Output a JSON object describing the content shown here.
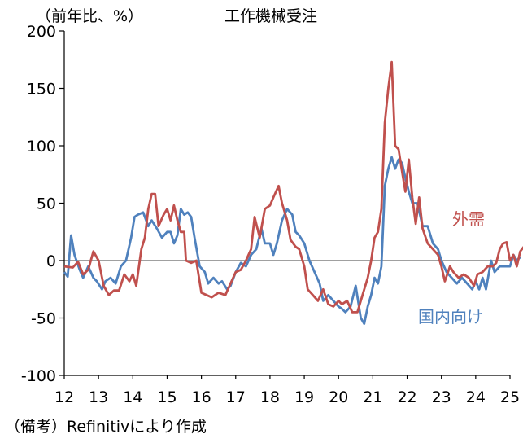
{
  "chart_data": {
    "type": "line",
    "title": "工作機械受注",
    "unit_label": "（前年比、%）",
    "caption": "（備考）Refinitivにより作成",
    "x_ticks": [
      "12",
      "13",
      "14",
      "15",
      "16",
      "17",
      "18",
      "19",
      "20",
      "21",
      "22",
      "23",
      "24",
      "25"
    ],
    "xlim": [
      2012,
      2025
    ],
    "ylim": [
      -100,
      200
    ],
    "y_ticks": [
      "200",
      "150",
      "100",
      "50",
      "0",
      "-50",
      "-100"
    ],
    "y_tick_values": [
      200,
      150,
      100,
      50,
      0,
      -50,
      -100
    ],
    "colors": {
      "external": "#c0504d",
      "domestic": "#4f81bd",
      "zero_line": "#808080",
      "axis": "#000000"
    },
    "series": [
      {
        "key": "external",
        "name": "外需",
        "points": [
          [
            2012.0,
            -5
          ],
          [
            2012.25,
            -6
          ],
          [
            2012.4,
            -1
          ],
          [
            2012.55,
            -12
          ],
          [
            2012.7,
            -8
          ],
          [
            2012.85,
            8
          ],
          [
            2013.0,
            0
          ],
          [
            2013.15,
            -22
          ],
          [
            2013.3,
            -30
          ],
          [
            2013.45,
            -26
          ],
          [
            2013.6,
            -26
          ],
          [
            2013.75,
            -12
          ],
          [
            2013.9,
            -18
          ],
          [
            2014.0,
            -12
          ],
          [
            2014.1,
            -22
          ],
          [
            2014.25,
            10
          ],
          [
            2014.35,
            20
          ],
          [
            2014.45,
            45
          ],
          [
            2014.55,
            58
          ],
          [
            2014.65,
            58
          ],
          [
            2014.75,
            30
          ],
          [
            2014.9,
            40
          ],
          [
            2015.0,
            45
          ],
          [
            2015.1,
            35
          ],
          [
            2015.2,
            48
          ],
          [
            2015.3,
            35
          ],
          [
            2015.4,
            25
          ],
          [
            2015.5,
            25
          ],
          [
            2015.55,
            0
          ],
          [
            2015.7,
            -2
          ],
          [
            2015.85,
            0
          ],
          [
            2016.0,
            -28
          ],
          [
            2016.15,
            -30
          ],
          [
            2016.3,
            -32
          ],
          [
            2016.5,
            -28
          ],
          [
            2016.7,
            -30
          ],
          [
            2016.85,
            -20
          ],
          [
            2017.0,
            -10
          ],
          [
            2017.15,
            -8
          ],
          [
            2017.3,
            0
          ],
          [
            2017.45,
            10
          ],
          [
            2017.55,
            38
          ],
          [
            2017.7,
            20
          ],
          [
            2017.85,
            45
          ],
          [
            2018.0,
            48
          ],
          [
            2018.1,
            55
          ],
          [
            2018.25,
            65
          ],
          [
            2018.35,
            50
          ],
          [
            2018.5,
            35
          ],
          [
            2018.6,
            18
          ],
          [
            2018.75,
            12
          ],
          [
            2018.85,
            10
          ],
          [
            2019.0,
            -5
          ],
          [
            2019.1,
            -25
          ],
          [
            2019.25,
            -30
          ],
          [
            2019.4,
            -35
          ],
          [
            2019.55,
            -25
          ],
          [
            2019.7,
            -38
          ],
          [
            2019.85,
            -40
          ],
          [
            2020.0,
            -35
          ],
          [
            2020.1,
            -38
          ],
          [
            2020.25,
            -35
          ],
          [
            2020.4,
            -45
          ],
          [
            2020.55,
            -45
          ],
          [
            2020.7,
            -30
          ],
          [
            2020.85,
            -15
          ],
          [
            2020.95,
            0
          ],
          [
            2021.05,
            20
          ],
          [
            2021.15,
            25
          ],
          [
            2021.25,
            45
          ],
          [
            2021.35,
            120
          ],
          [
            2021.45,
            150
          ],
          [
            2021.55,
            173
          ],
          [
            2021.65,
            100
          ],
          [
            2021.75,
            97
          ],
          [
            2021.85,
            78
          ],
          [
            2021.95,
            60
          ],
          [
            2022.05,
            88
          ],
          [
            2022.15,
            55
          ],
          [
            2022.25,
            32
          ],
          [
            2022.35,
            55
          ],
          [
            2022.45,
            28
          ],
          [
            2022.6,
            15
          ],
          [
            2022.75,
            10
          ],
          [
            2022.9,
            5
          ],
          [
            2023.0,
            -5
          ],
          [
            2023.1,
            -18
          ],
          [
            2023.25,
            -5
          ],
          [
            2023.35,
            -10
          ],
          [
            2023.5,
            -15
          ],
          [
            2023.65,
            -12
          ],
          [
            2023.8,
            -15
          ],
          [
            2023.95,
            -22
          ],
          [
            2024.05,
            -12
          ],
          [
            2024.2,
            -10
          ],
          [
            2024.35,
            -5
          ],
          [
            2024.5,
            -5
          ],
          [
            2024.6,
            -2
          ],
          [
            2024.7,
            10
          ],
          [
            2024.8,
            15
          ],
          [
            2024.9,
            16
          ],
          [
            2025.0,
            0
          ],
          [
            2025.1,
            5
          ],
          [
            2025.2,
            -5
          ],
          [
            2025.3,
            8
          ],
          [
            2025.4,
            12
          ]
        ]
      },
      {
        "key": "domestic",
        "name": "国内向け",
        "points": [
          [
            2012.0,
            -10
          ],
          [
            2012.1,
            -14
          ],
          [
            2012.2,
            22
          ],
          [
            2012.3,
            5
          ],
          [
            2012.45,
            -8
          ],
          [
            2012.55,
            -15
          ],
          [
            2012.7,
            -5
          ],
          [
            2012.85,
            -15
          ],
          [
            2012.95,
            -18
          ],
          [
            2013.1,
            -25
          ],
          [
            2013.2,
            -18
          ],
          [
            2013.35,
            -15
          ],
          [
            2013.5,
            -20
          ],
          [
            2013.65,
            -5
          ],
          [
            2013.8,
            0
          ],
          [
            2013.95,
            20
          ],
          [
            2014.05,
            38
          ],
          [
            2014.15,
            40
          ],
          [
            2014.3,
            42
          ],
          [
            2014.45,
            30
          ],
          [
            2014.55,
            35
          ],
          [
            2014.7,
            28
          ],
          [
            2014.85,
            20
          ],
          [
            2015.0,
            25
          ],
          [
            2015.1,
            25
          ],
          [
            2015.2,
            15
          ],
          [
            2015.3,
            22
          ],
          [
            2015.4,
            45
          ],
          [
            2015.5,
            40
          ],
          [
            2015.6,
            42
          ],
          [
            2015.7,
            38
          ],
          [
            2015.8,
            20
          ],
          [
            2015.95,
            -5
          ],
          [
            2016.1,
            -10
          ],
          [
            2016.2,
            -20
          ],
          [
            2016.35,
            -15
          ],
          [
            2016.5,
            -20
          ],
          [
            2016.6,
            -18
          ],
          [
            2016.75,
            -25
          ],
          [
            2016.85,
            -22
          ],
          [
            2017.0,
            -10
          ],
          [
            2017.15,
            -2
          ],
          [
            2017.3,
            -5
          ],
          [
            2017.45,
            5
          ],
          [
            2017.6,
            10
          ],
          [
            2017.75,
            28
          ],
          [
            2017.85,
            15
          ],
          [
            2018.0,
            15
          ],
          [
            2018.1,
            5
          ],
          [
            2018.2,
            15
          ],
          [
            2018.35,
            35
          ],
          [
            2018.5,
            45
          ],
          [
            2018.65,
            40
          ],
          [
            2018.75,
            25
          ],
          [
            2018.85,
            22
          ],
          [
            2019.0,
            15
          ],
          [
            2019.15,
            0
          ],
          [
            2019.3,
            -10
          ],
          [
            2019.45,
            -20
          ],
          [
            2019.55,
            -35
          ],
          [
            2019.7,
            -30
          ],
          [
            2019.85,
            -35
          ],
          [
            2020.0,
            -40
          ],
          [
            2020.1,
            -42
          ],
          [
            2020.2,
            -45
          ],
          [
            2020.35,
            -40
          ],
          [
            2020.5,
            -22
          ],
          [
            2020.65,
            -50
          ],
          [
            2020.75,
            -55
          ],
          [
            2020.85,
            -40
          ],
          [
            2020.95,
            -30
          ],
          [
            2021.05,
            -15
          ],
          [
            2021.15,
            -20
          ],
          [
            2021.25,
            -5
          ],
          [
            2021.35,
            65
          ],
          [
            2021.45,
            80
          ],
          [
            2021.55,
            90
          ],
          [
            2021.65,
            80
          ],
          [
            2021.75,
            88
          ],
          [
            2021.85,
            85
          ],
          [
            2021.95,
            72
          ],
          [
            2022.05,
            60
          ],
          [
            2022.15,
            50
          ],
          [
            2022.3,
            50
          ],
          [
            2022.45,
            30
          ],
          [
            2022.6,
            30
          ],
          [
            2022.75,
            15
          ],
          [
            2022.9,
            10
          ],
          [
            2023.0,
            0
          ],
          [
            2023.15,
            -10
          ],
          [
            2023.3,
            -15
          ],
          [
            2023.45,
            -20
          ],
          [
            2023.6,
            -15
          ],
          [
            2023.75,
            -20
          ],
          [
            2023.9,
            -25
          ],
          [
            2024.0,
            -18
          ],
          [
            2024.1,
            -25
          ],
          [
            2024.2,
            -15
          ],
          [
            2024.3,
            -25
          ],
          [
            2024.45,
            0
          ],
          [
            2024.55,
            -10
          ],
          [
            2024.7,
            -5
          ],
          [
            2024.85,
            -5
          ],
          [
            2025.0,
            -5
          ],
          [
            2025.1,
            5
          ],
          [
            2025.2,
            0
          ],
          [
            2025.3,
            3
          ]
        ]
      }
    ],
    "annotations": [
      {
        "text": "外需",
        "series": "external"
      },
      {
        "text": "国内向け",
        "series": "domestic"
      }
    ]
  }
}
